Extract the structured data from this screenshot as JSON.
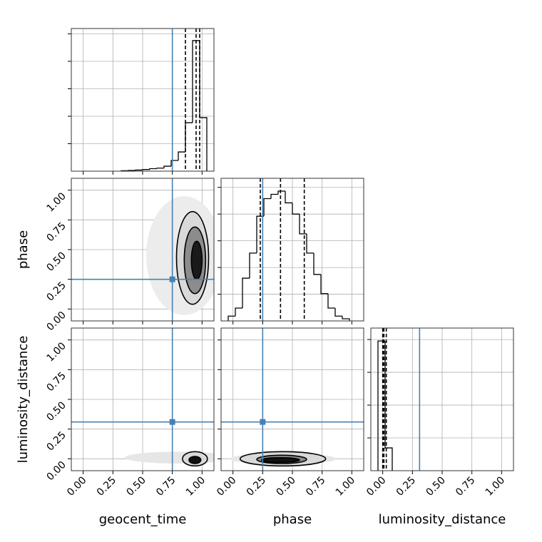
{
  "chart_data": {
    "type": "corner",
    "grid": true,
    "truth_color": "#4682b4",
    "parameters": [
      {
        "name": "geocent_time",
        "lim": [
          -0.1,
          1.1
        ],
        "ticks": [
          {
            "value": 0,
            "label": "0.00"
          },
          {
            "value": 0.25,
            "label": "0.25"
          },
          {
            "value": 0.5,
            "label": "0.50"
          },
          {
            "value": 0.75,
            "label": "0.75"
          },
          {
            "value": 1,
            "label": "1.00"
          }
        ],
        "truth": 0.75,
        "quantiles": [
          0.86,
          0.95,
          0.98
        ],
        "hist": {
          "bins": [
            0.32,
            0.38,
            0.44,
            0.5,
            0.56,
            0.62,
            0.68,
            0.74,
            0.8,
            0.86,
            0.92,
            0.98,
            1.04
          ],
          "counts": [
            3,
            5,
            8,
            12,
            18,
            22,
            36,
            78,
            140,
            353,
            951,
            390
          ],
          "ylim": [
            0,
            1039
          ],
          "yticks": [
            200,
            400,
            600,
            800,
            1000
          ]
        }
      },
      {
        "name": "phase",
        "lim": [
          -0.1,
          1.1
        ],
        "ticks": [
          {
            "value": 0,
            "label": "0.00"
          },
          {
            "value": 0.25,
            "label": "0.25"
          },
          {
            "value": 0.5,
            "label": "0.50"
          },
          {
            "value": 0.75,
            "label": "0.75"
          },
          {
            "value": 1,
            "label": "1.00"
          }
        ],
        "truth": 0.25,
        "quantiles": [
          0.23,
          0.4,
          0.6
        ],
        "hist": {
          "bins": [
            -0.04,
            0.02,
            0.08,
            0.14,
            0.2,
            0.26,
            0.32,
            0.38,
            0.44,
            0.5,
            0.56,
            0.62,
            0.68,
            0.74,
            0.8,
            0.86,
            0.92,
            0.98
          ],
          "counts": [
            9,
            24,
            80,
            127,
            196,
            229,
            237,
            243,
            221,
            200,
            163,
            127,
            87,
            51,
            24,
            9,
            4
          ],
          "ylim": [
            0,
            267
          ],
          "yticks": [
            50,
            100,
            150,
            200,
            250
          ]
        }
      },
      {
        "name": "luminosity_distance",
        "lim": [
          -0.1,
          1.1
        ],
        "ticks": [
          {
            "value": 0,
            "label": "0.00"
          },
          {
            "value": 0.25,
            "label": "0.25"
          },
          {
            "value": 0.5,
            "label": "0.50"
          },
          {
            "value": 0.75,
            "label": "0.75"
          },
          {
            "value": 1,
            "label": "1.00"
          }
        ],
        "truth": 0.31,
        "quantiles": [
          0.0,
          0.01,
          0.03
        ],
        "hist": {
          "bins": [
            -0.04,
            0.02,
            0.08
          ],
          "counts": [
            791,
            139
          ],
          "ylim": [
            0,
            870
          ],
          "yticks": [
            200,
            400,
            600,
            800
          ]
        }
      }
    ],
    "pairs": [
      {
        "x": 0,
        "y": 1,
        "contours": [
          {
            "cx": 0.85,
            "cy": 0.45,
            "rx": 0.32,
            "ry": 0.5,
            "fill": "#ececec"
          },
          {
            "cx": 0.92,
            "cy": 0.43,
            "rx": 0.135,
            "ry": 0.39,
            "fill": "#d9d9d9"
          },
          {
            "cx": 0.94,
            "cy": 0.41,
            "rx": 0.09,
            "ry": 0.28,
            "fill": "#8c8c8c"
          },
          {
            "cx": 0.955,
            "cy": 0.41,
            "rx": 0.045,
            "ry": 0.16,
            "fill": "#1a1a1a"
          }
        ]
      },
      {
        "x": 0,
        "y": 2,
        "contours": [
          {
            "cx": 0.8,
            "cy": 0.01,
            "rx": 0.45,
            "ry": 0.05,
            "fill": "#e6e6e6"
          },
          {
            "cx": 0.94,
            "cy": 0.0,
            "rx": 0.105,
            "ry": 0.06,
            "fill": "#d9d9d9"
          },
          {
            "cx": 0.94,
            "cy": -0.01,
            "rx": 0.05,
            "ry": 0.03,
            "fill": "#111111"
          }
        ]
      },
      {
        "x": 1,
        "y": 2,
        "contours": [
          {
            "cx": 0.42,
            "cy": 0.0,
            "rx": 0.45,
            "ry": 0.045,
            "fill": "#e6e6e6"
          },
          {
            "cx": 0.42,
            "cy": 0.0,
            "rx": 0.36,
            "ry": 0.06,
            "fill": "#d9d9d9"
          },
          {
            "cx": 0.41,
            "cy": -0.005,
            "rx": 0.21,
            "ry": 0.035,
            "fill": "#8c8c8c"
          },
          {
            "cx": 0.4,
            "cy": -0.01,
            "rx": 0.16,
            "ry": 0.02,
            "fill": "#111111"
          }
        ]
      }
    ]
  }
}
